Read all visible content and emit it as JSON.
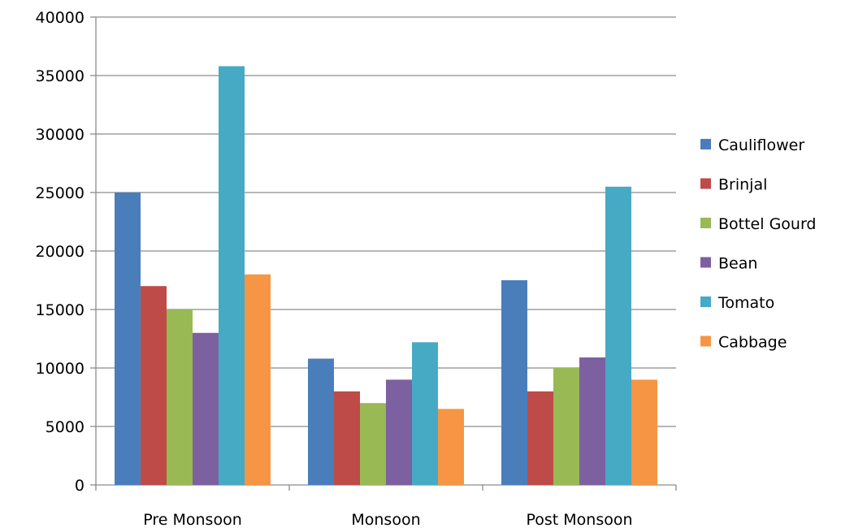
{
  "chart_data": {
    "type": "bar",
    "categories": [
      "Pre Monsoon",
      "Monsoon",
      "Post Monsoon"
    ],
    "series": [
      {
        "name": "Cauliflower",
        "color": "#4a7ebb",
        "values": [
          25000,
          10800,
          17500
        ]
      },
      {
        "name": "Brinjal",
        "color": "#be4b48",
        "values": [
          17000,
          8000,
          8000
        ]
      },
      {
        "name": "Bottel Gourd",
        "color": "#98b954",
        "values": [
          15000,
          7000,
          10000
        ]
      },
      {
        "name": "Bean",
        "color": "#7d60a0",
        "values": [
          13000,
          9000,
          10900
        ]
      },
      {
        "name": "Tomato",
        "color": "#46aac5",
        "values": [
          35800,
          12200,
          25500
        ]
      },
      {
        "name": "Cabbage",
        "color": "#f69544",
        "values": [
          18000,
          6500,
          9000
        ]
      }
    ],
    "ylim": [
      0,
      40000
    ],
    "yticks": [
      "0",
      "5000",
      "10000",
      "15000",
      "20000",
      "25000",
      "30000",
      "35000",
      "40000"
    ],
    "grid": true,
    "legend": "right",
    "title": "",
    "xlabel": "",
    "ylabel": ""
  }
}
